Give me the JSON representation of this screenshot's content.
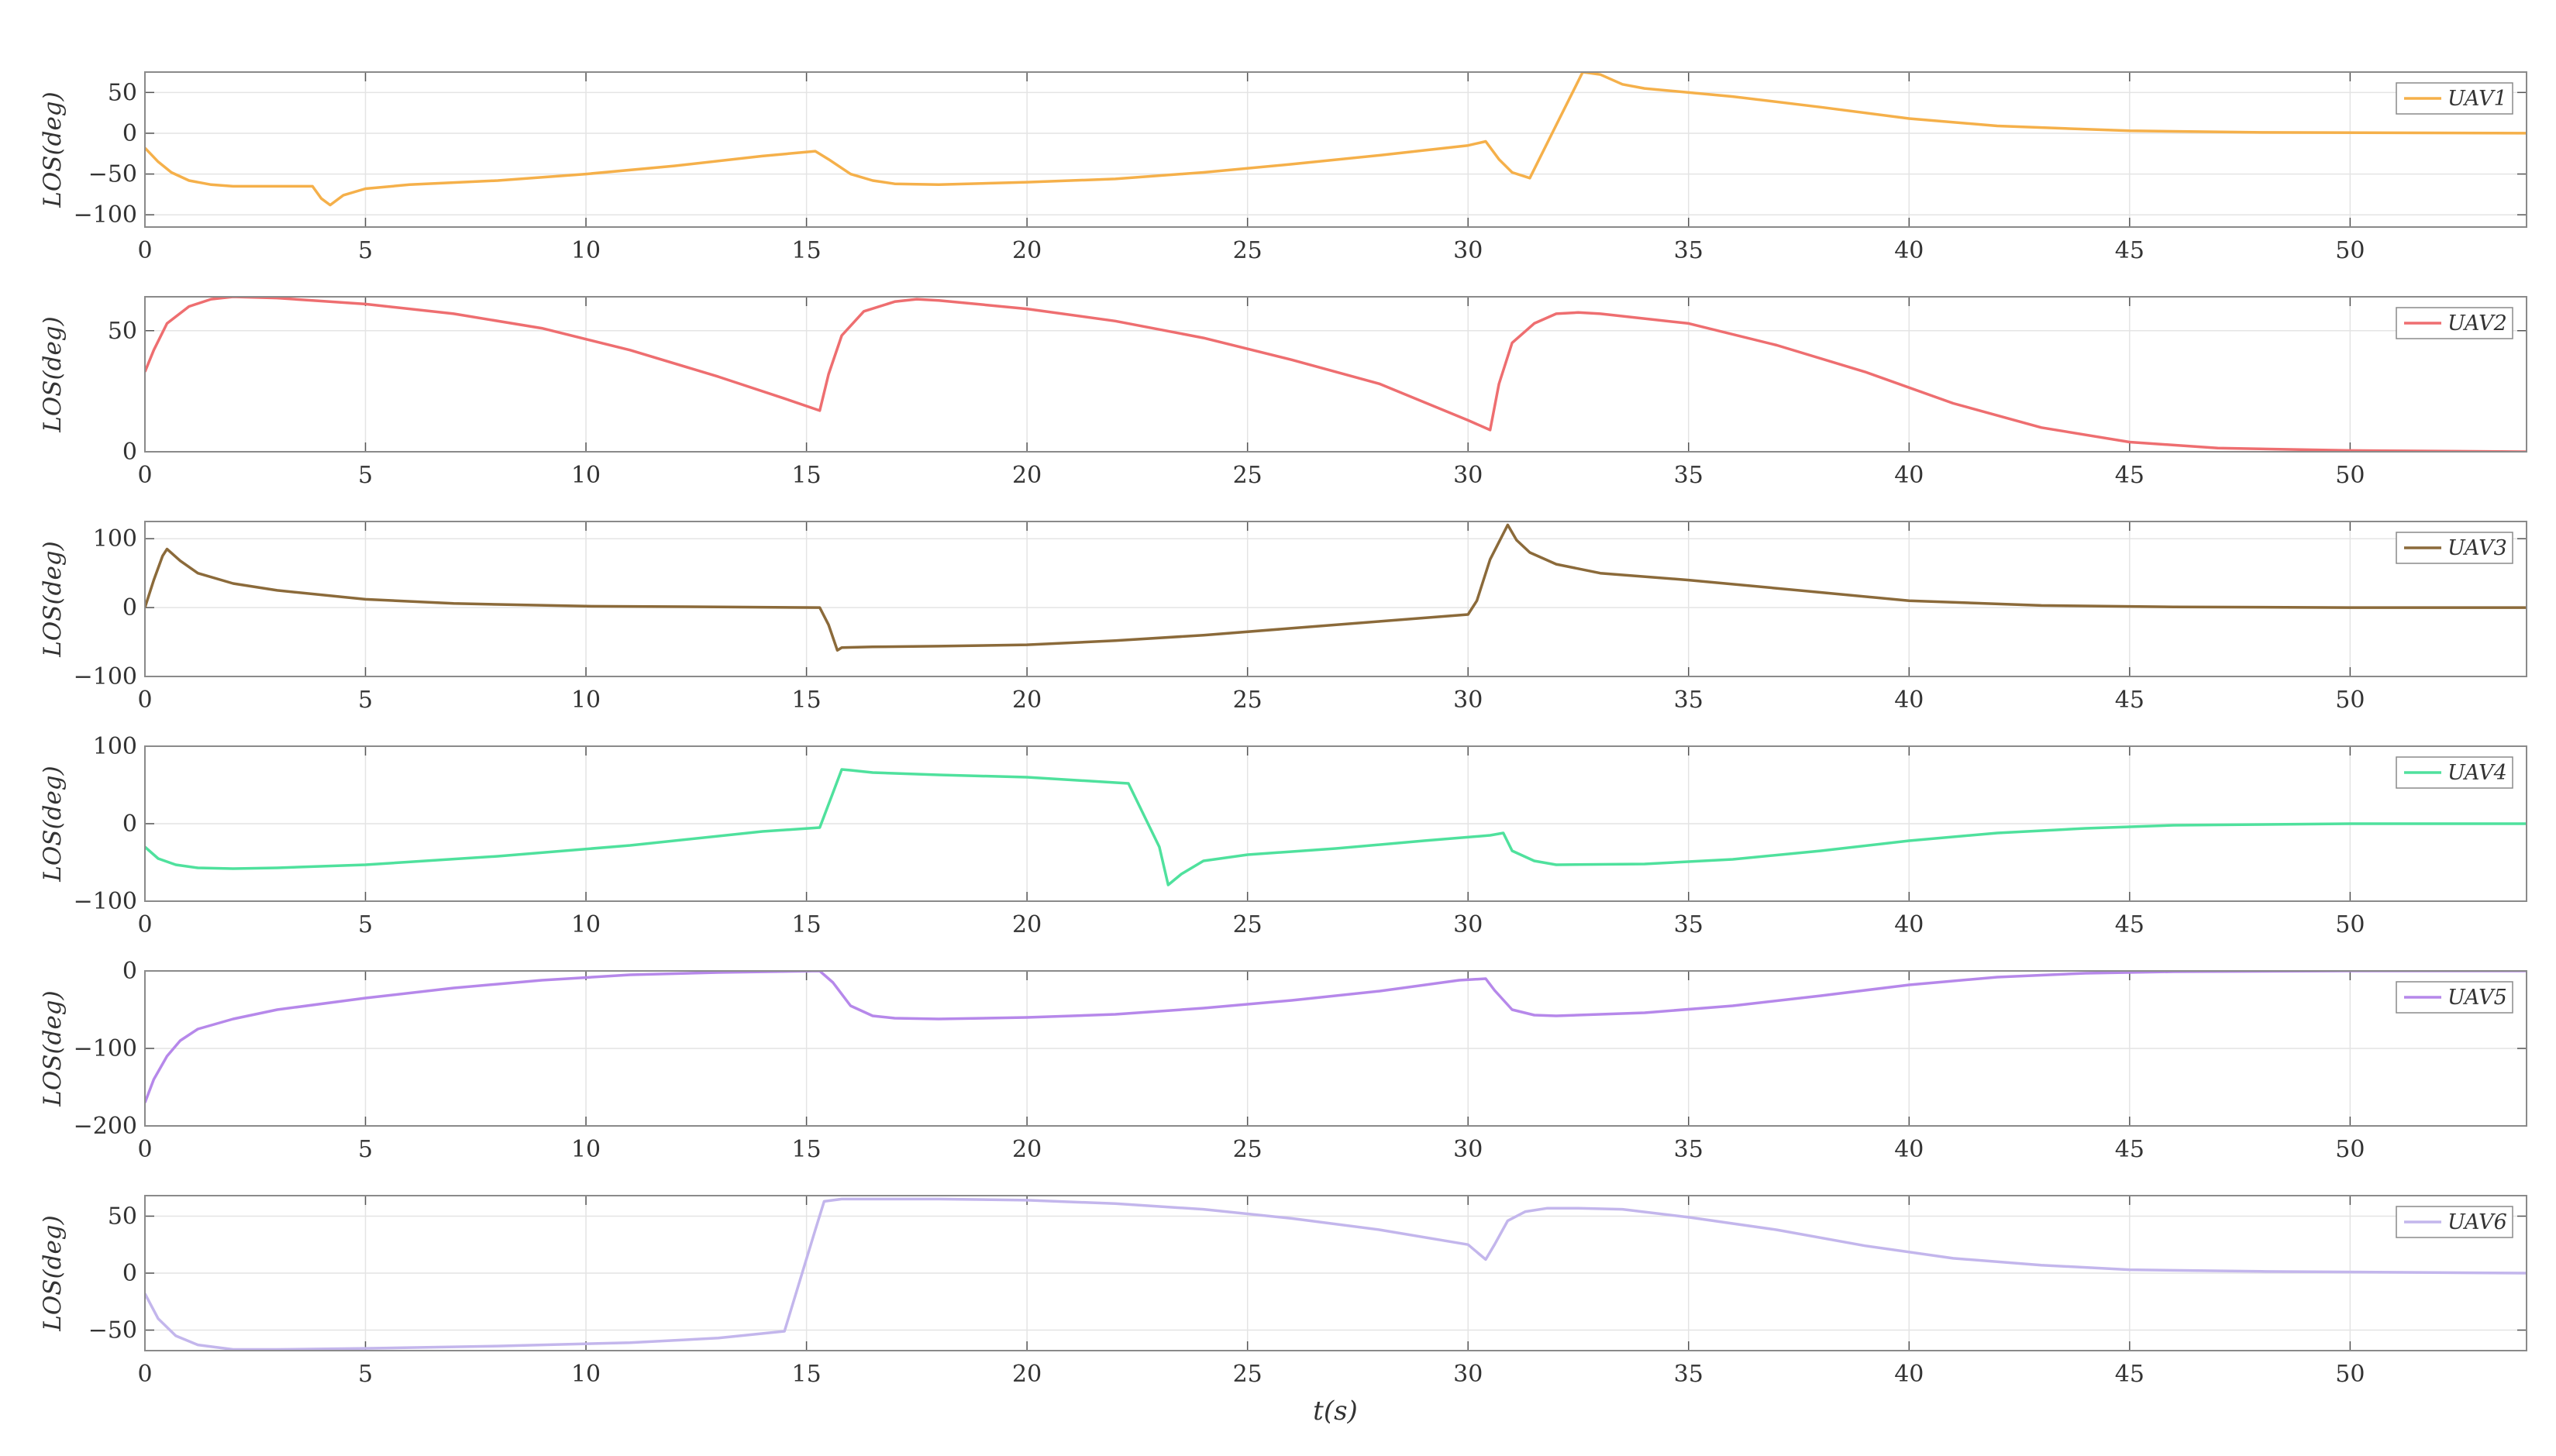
{
  "figure": {
    "xlabel": "t(s)"
  },
  "chart_data": [
    {
      "type": "line",
      "ylabel": "LOS(deg)",
      "xlim": [
        0,
        54
      ],
      "ylim": [
        -115,
        75
      ],
      "xticks": [
        0,
        5,
        10,
        15,
        20,
        25,
        30,
        35,
        40,
        45,
        50
      ],
      "yticks": [
        -100,
        -50,
        0,
        50
      ],
      "ytick_labels": [
        "−100",
        "−50",
        "0",
        "50"
      ],
      "grid": true,
      "legend_position": "top-right",
      "series": [
        {
          "name": "UAV1",
          "color": "#f5b04a",
          "x": [
            0,
            0.3,
            0.6,
            1.0,
            1.5,
            2.0,
            3.0,
            3.8,
            4.0,
            4.2,
            4.5,
            5.0,
            6.0,
            8.0,
            10.0,
            12.0,
            14.0,
            15.2,
            15.5,
            16.0,
            16.5,
            17.0,
            18.0,
            20.0,
            22.0,
            24.0,
            26.0,
            28.0,
            30.0,
            30.4,
            30.7,
            31.0,
            31.4,
            32.0,
            32.6,
            33.0,
            33.5,
            34.0,
            36.0,
            38.0,
            40.0,
            42.0,
            45.0,
            48.0,
            51.0,
            54.0
          ],
          "y": [
            -18,
            -35,
            -48,
            -58,
            -63,
            -65,
            -65,
            -65,
            -80,
            -88,
            -76,
            -68,
            -63,
            -58,
            -50,
            -40,
            -28,
            -22,
            -32,
            -50,
            -58,
            -62,
            -63,
            -60,
            -56,
            -48,
            -38,
            -27,
            -15,
            -10,
            -32,
            -48,
            -55,
            10,
            75,
            72,
            60,
            55,
            45,
            32,
            18,
            9,
            3,
            1,
            0.5,
            0
          ]
        }
      ]
    },
    {
      "type": "line",
      "ylabel": "LOS(deg)",
      "xlim": [
        0,
        54
      ],
      "ylim": [
        0,
        64
      ],
      "xticks": [
        0,
        5,
        10,
        15,
        20,
        25,
        30,
        35,
        40,
        45,
        50
      ],
      "yticks": [
        0,
        50
      ],
      "ytick_labels": [
        "0",
        "50"
      ],
      "grid": true,
      "legend_position": "top-right",
      "series": [
        {
          "name": "UAV2",
          "color": "#ee6e70",
          "x": [
            0,
            0.2,
            0.5,
            1.0,
            1.5,
            2.0,
            3.0,
            5.0,
            7.0,
            9.0,
            11.0,
            13.0,
            14.5,
            15.3,
            15.5,
            15.8,
            16.3,
            17.0,
            17.5,
            18.0,
            20.0,
            22.0,
            24.0,
            26.0,
            28.0,
            30.0,
            30.5,
            30.7,
            31.0,
            31.5,
            32.0,
            32.5,
            33.0,
            35.0,
            37.0,
            39.0,
            41.0,
            43.0,
            45.0,
            47.0,
            50.0,
            54.0
          ],
          "y": [
            33,
            42,
            53,
            60,
            63,
            64,
            63.5,
            61,
            57,
            51,
            42,
            31,
            22,
            17,
            32,
            48,
            58,
            62,
            63,
            62.5,
            59,
            54,
            47,
            38,
            28,
            13,
            9,
            28,
            45,
            53,
            57,
            57.5,
            57,
            53,
            44,
            33,
            20,
            10,
            4,
            1.5,
            0.5,
            0
          ]
        }
      ]
    },
    {
      "type": "line",
      "ylabel": "LOS(deg)",
      "xlim": [
        0,
        54
      ],
      "ylim": [
        -100,
        125
      ],
      "xticks": [
        0,
        5,
        10,
        15,
        20,
        25,
        30,
        35,
        40,
        45,
        50
      ],
      "yticks": [
        -100,
        0,
        100
      ],
      "ytick_labels": [
        "−100",
        "0",
        "100"
      ],
      "grid": true,
      "legend_position": "top-right",
      "series": [
        {
          "name": "UAV3",
          "color": "#8b6a3a",
          "x": [
            0,
            0.2,
            0.4,
            0.5,
            0.8,
            1.2,
            2.0,
            3.0,
            5.0,
            7.0,
            10.0,
            13.0,
            15.3,
            15.5,
            15.7,
            15.8,
            16.5,
            18.0,
            20.0,
            22.0,
            24.0,
            26.0,
            28.0,
            30.0,
            30.2,
            30.5,
            30.9,
            31.1,
            31.4,
            32.0,
            33.0,
            35.0,
            37.0,
            40.0,
            43.0,
            46.0,
            50.0,
            54.0
          ],
          "y": [
            0,
            40,
            75,
            85,
            68,
            50,
            35,
            25,
            12,
            6,
            2,
            1,
            0,
            -25,
            -62,
            -58,
            -57,
            -56,
            -54,
            -48,
            -40,
            -30,
            -20,
            -10,
            10,
            70,
            120,
            98,
            80,
            63,
            50,
            40,
            28,
            10,
            3,
            1,
            0,
            0
          ]
        }
      ]
    },
    {
      "type": "line",
      "ylabel": "LOS(deg)",
      "xlim": [
        0,
        54
      ],
      "ylim": [
        -100,
        100
      ],
      "xticks": [
        0,
        5,
        10,
        15,
        20,
        25,
        30,
        35,
        40,
        45,
        50
      ],
      "yticks": [
        -100,
        0,
        100
      ],
      "ytick_labels": [
        "−100",
        "0",
        "100"
      ],
      "grid": true,
      "legend_position": "top-right",
      "series": [
        {
          "name": "UAV4",
          "color": "#4fe19d",
          "x": [
            0,
            0.3,
            0.7,
            1.2,
            2.0,
            3.0,
            5.0,
            8.0,
            11.0,
            14.0,
            15.3,
            15.6,
            15.8,
            16.0,
            16.5,
            18.0,
            20.0,
            22.3,
            23.0,
            23.2,
            23.5,
            24.0,
            25.0,
            27.0,
            29.0,
            30.5,
            30.8,
            31.0,
            31.5,
            32.0,
            34.0,
            36.0,
            38.0,
            40.0,
            42.0,
            44.0,
            46.0,
            50.0,
            54.0
          ],
          "y": [
            -30,
            -45,
            -53,
            -57,
            -58,
            -57,
            -53,
            -42,
            -28,
            -10,
            -5,
            40,
            70,
            69,
            66,
            63,
            60,
            52,
            -30,
            -79,
            -65,
            -48,
            -40,
            -32,
            -22,
            -15,
            -12,
            -35,
            -48,
            -53,
            -52,
            -46,
            -35,
            -22,
            -12,
            -6,
            -2,
            0,
            0
          ]
        }
      ]
    },
    {
      "type": "line",
      "ylabel": "LOS(deg)",
      "xlim": [
        0,
        54
      ],
      "ylim": [
        -200,
        0
      ],
      "xticks": [
        0,
        5,
        10,
        15,
        20,
        25,
        30,
        35,
        40,
        45,
        50
      ],
      "yticks": [
        -200,
        -100,
        0
      ],
      "ytick_labels": [
        "−200",
        "−100",
        "0"
      ],
      "grid": true,
      "legend_position": "top-right",
      "series": [
        {
          "name": "UAV5",
          "color": "#b688ea",
          "x": [
            0,
            0.2,
            0.5,
            0.8,
            1.2,
            2.0,
            3.0,
            5.0,
            7.0,
            9.0,
            11.0,
            13.0,
            15.3,
            15.6,
            16.0,
            16.5,
            17.0,
            18.0,
            20.0,
            22.0,
            24.0,
            26.0,
            28.0,
            29.8,
            30.4,
            30.6,
            31.0,
            31.5,
            32.0,
            34.0,
            36.0,
            38.0,
            40.0,
            42.0,
            44.0,
            46.0,
            50.0,
            54.0
          ],
          "y": [
            -170,
            -140,
            -110,
            -90,
            -75,
            -62,
            -50,
            -35,
            -22,
            -12,
            -5,
            -2,
            0,
            -15,
            -45,
            -58,
            -61,
            -62,
            -60,
            -56,
            -48,
            -38,
            -26,
            -12,
            -10,
            -25,
            -50,
            -57,
            -58,
            -54,
            -45,
            -32,
            -18,
            -8,
            -3,
            -1,
            0,
            0
          ]
        }
      ]
    },
    {
      "type": "line",
      "ylabel": "LOS(deg)",
      "xlim": [
        0,
        54
      ],
      "ylim": [
        -68,
        68
      ],
      "xticks": [
        0,
        5,
        10,
        15,
        20,
        25,
        30,
        35,
        40,
        45,
        50
      ],
      "yticks": [
        -50,
        0,
        50
      ],
      "ytick_labels": [
        "−50",
        "0",
        "50"
      ],
      "grid": true,
      "legend_position": "top-right",
      "series": [
        {
          "name": "UAV6",
          "color": "#c3b6ec",
          "x": [
            0,
            0.3,
            0.7,
            1.2,
            2.0,
            3.0,
            5.0,
            8.0,
            11.0,
            13.0,
            14.5,
            15.2,
            15.4,
            15.8,
            16.5,
            18.0,
            20.0,
            22.0,
            24.0,
            26.0,
            28.0,
            30.0,
            30.4,
            30.6,
            30.9,
            31.3,
            31.8,
            32.5,
            33.5,
            35.0,
            37.0,
            39.0,
            41.0,
            43.0,
            45.0,
            48.0,
            54.0
          ],
          "y": [
            -18,
            -40,
            -55,
            -63,
            -67,
            -67,
            -66,
            -64,
            -61,
            -57,
            -51,
            38,
            63,
            65,
            65,
            65,
            64,
            61,
            56,
            48,
            38,
            25,
            12,
            25,
            46,
            54,
            57,
            57,
            56,
            49,
            38,
            24,
            13,
            7,
            3,
            1.5,
            0
          ]
        }
      ]
    }
  ]
}
